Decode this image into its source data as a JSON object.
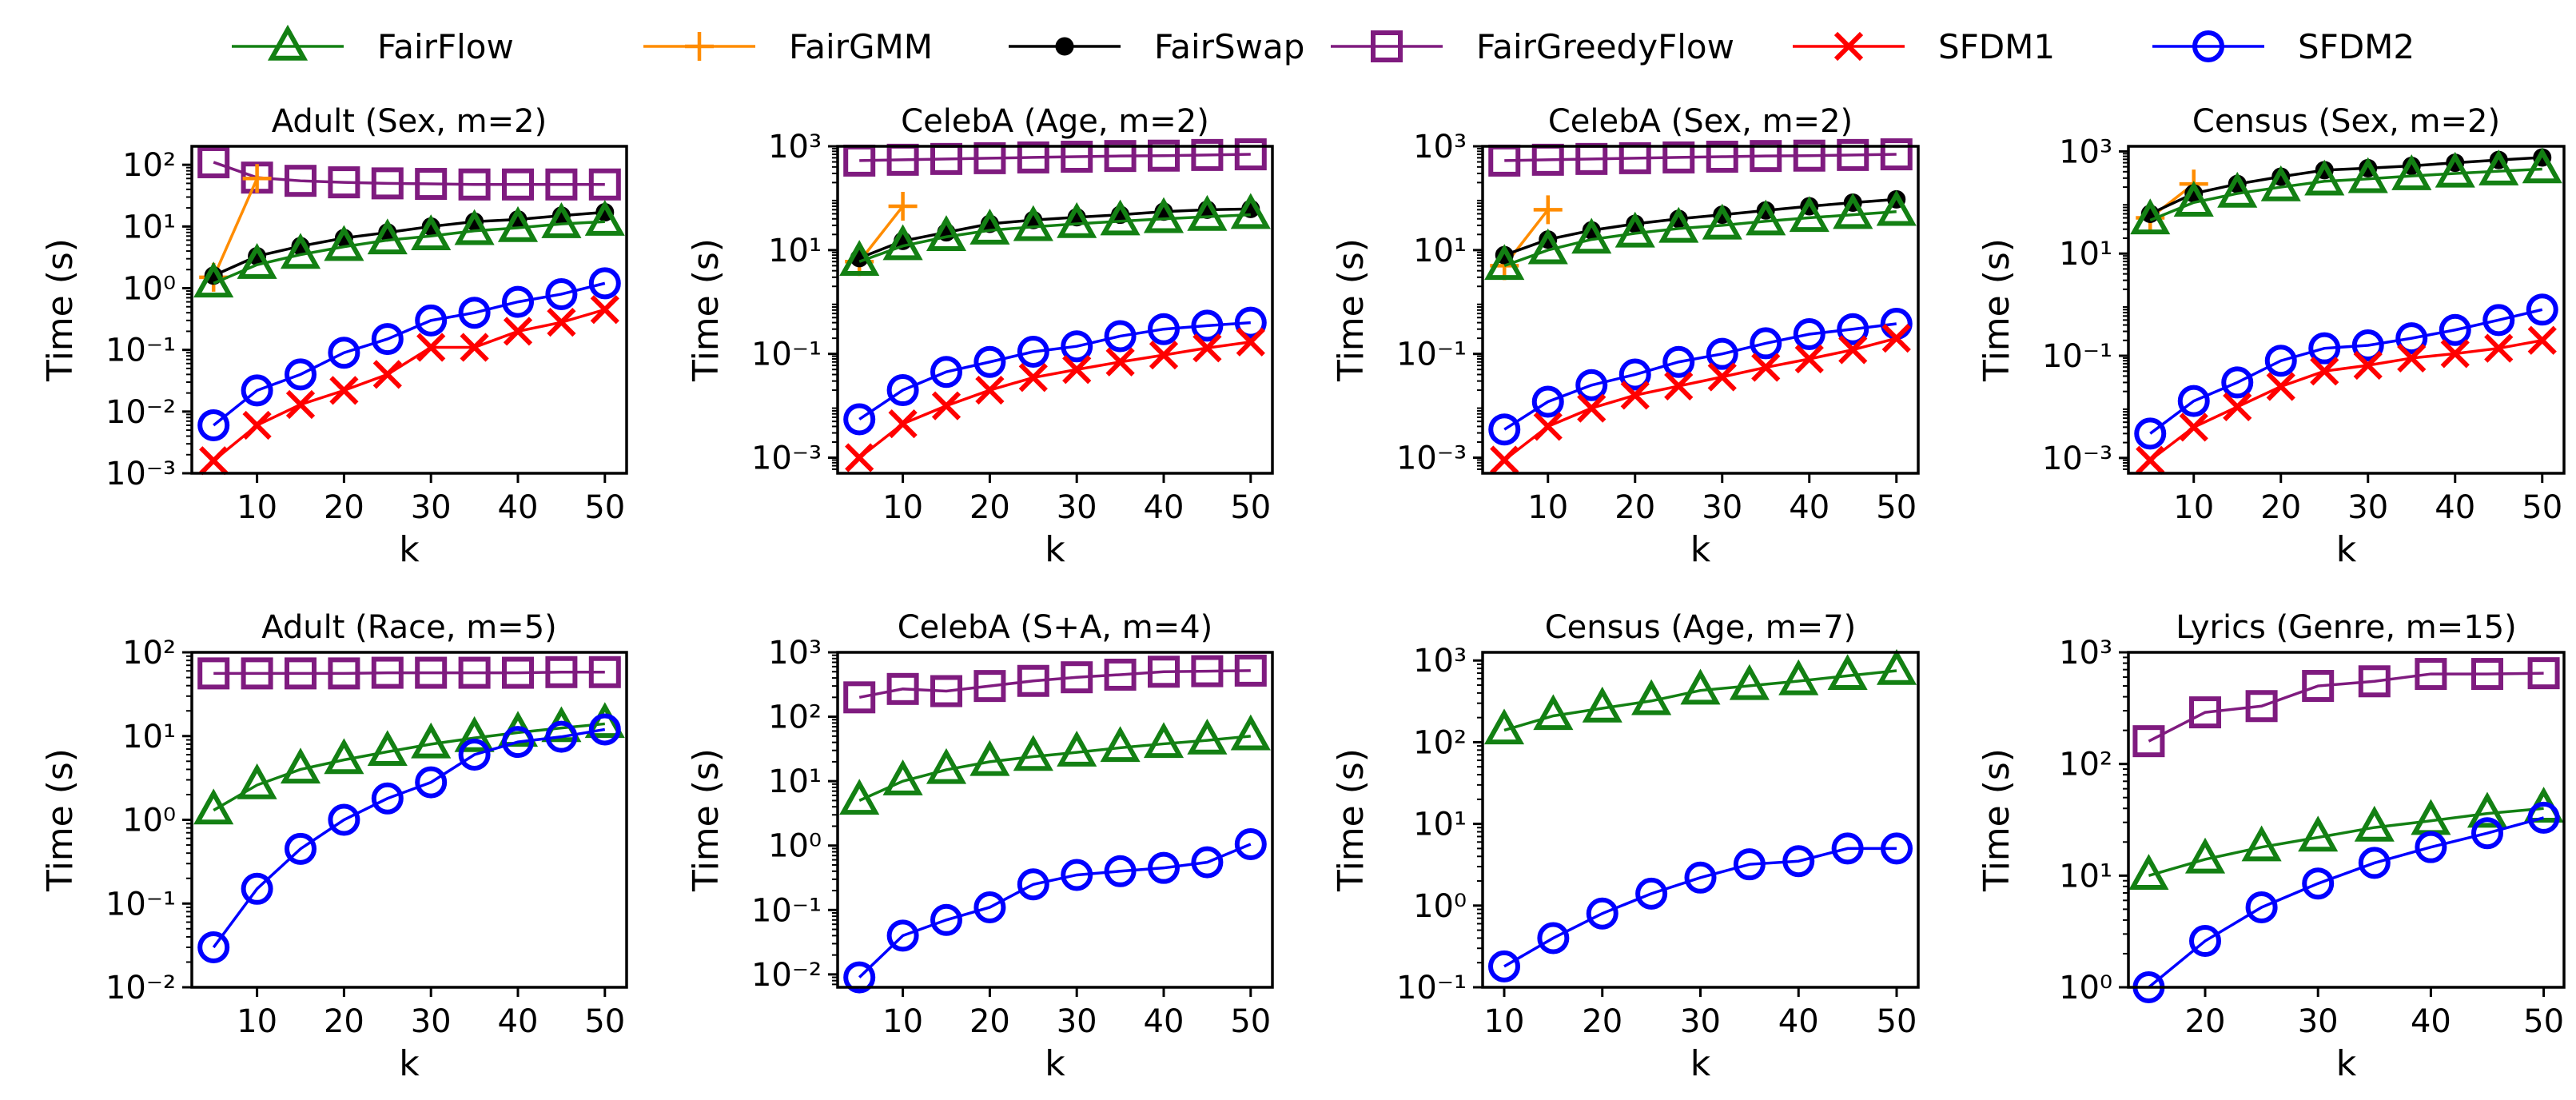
{
  "legend": [
    {
      "name": "FairFlow",
      "color": "#138013",
      "marker": "triangle"
    },
    {
      "name": "FairGMM",
      "color": "#ff8c00",
      "marker": "plus"
    },
    {
      "name": "FairSwap",
      "color": "#000000",
      "marker": "dot"
    },
    {
      "name": "FairGreedyFlow",
      "color": "#7f1b7f",
      "marker": "square"
    },
    {
      "name": "SFDM1",
      "color": "#ff0000",
      "marker": "x"
    },
    {
      "name": "SFDM2",
      "color": "#0000ff",
      "marker": "circle"
    }
  ],
  "chart_data": [
    {
      "type": "line",
      "title": "Adult (Sex, m=2)",
      "xlabel": "k",
      "ylabel": "Time (s)",
      "xlim": [
        2.5,
        52.5
      ],
      "xticks": [
        10,
        20,
        30,
        40,
        50
      ],
      "ylim_exp": [
        -3,
        2.3
      ],
      "yticks_exp": [
        -3,
        -2,
        -1,
        0,
        1,
        2
      ],
      "x": [
        5,
        10,
        15,
        20,
        25,
        30,
        35,
        40,
        45,
        50
      ],
      "series": [
        {
          "name": "FairGreedyFlow",
          "values": [
            110,
            62,
            55,
            52,
            50,
            49,
            48,
            48,
            48,
            48
          ]
        },
        {
          "name": "FairGMM",
          "values": [
            1.5,
            60,
            null,
            null,
            null,
            null,
            null,
            null,
            null,
            null
          ]
        },
        {
          "name": "FairSwap",
          "values": [
            1.6,
            3.3,
            4.8,
            6.5,
            8,
            10,
            12,
            13,
            15,
            17
          ]
        },
        {
          "name": "FairFlow",
          "values": [
            1.2,
            2.4,
            3.5,
            4.7,
            6,
            7,
            8.5,
            9.5,
            11,
            12
          ]
        },
        {
          "name": "SFDM2",
          "values": [
            0.006,
            0.022,
            0.04,
            0.09,
            0.15,
            0.3,
            0.4,
            0.6,
            0.8,
            1.2
          ]
        },
        {
          "name": "SFDM1",
          "values": [
            0.0016,
            0.006,
            0.013,
            0.022,
            0.04,
            0.11,
            0.11,
            0.2,
            0.28,
            0.45
          ]
        }
      ]
    },
    {
      "type": "line",
      "title": "CelebA (Age, m=2)",
      "xlabel": "k",
      "ylabel": "Time (s)",
      "xlim": [
        2.5,
        52.5
      ],
      "xticks": [
        10,
        20,
        30,
        40,
        50
      ],
      "ylim_exp": [
        -3.3,
        3
      ],
      "yticks_exp": [
        -3,
        -1,
        1,
        3
      ],
      "x": [
        5,
        10,
        15,
        20,
        25,
        30,
        35,
        40,
        45,
        50
      ],
      "series": [
        {
          "name": "FairGreedyFlow",
          "values": [
            530,
            550,
            570,
            590,
            610,
            630,
            650,
            660,
            680,
            700
          ]
        },
        {
          "name": "FairGMM",
          "values": [
            6,
            70,
            null,
            null,
            null,
            null,
            null,
            null,
            null,
            null
          ]
        },
        {
          "name": "FairSwap",
          "values": [
            7,
            15,
            22,
            32,
            38,
            43,
            48,
            55,
            60,
            62
          ]
        },
        {
          "name": "FairFlow",
          "values": [
            6,
            12,
            18,
            24,
            28,
            32,
            36,
            40,
            44,
            48
          ]
        },
        {
          "name": "SFDM2",
          "values": [
            0.0055,
            0.02,
            0.045,
            0.07,
            0.11,
            0.14,
            0.22,
            0.3,
            0.35,
            0.4
          ]
        },
        {
          "name": "SFDM1",
          "values": [
            0.001,
            0.0045,
            0.01,
            0.02,
            0.035,
            0.05,
            0.07,
            0.095,
            0.13,
            0.17
          ]
        }
      ]
    },
    {
      "type": "line",
      "title": "CelebA (Sex, m=2)",
      "xlabel": "k",
      "ylabel": "Time (s)",
      "xlim": [
        2.5,
        52.5
      ],
      "xticks": [
        10,
        20,
        30,
        40,
        50
      ],
      "ylim_exp": [
        -3.3,
        3
      ],
      "yticks_exp": [
        -3,
        -1,
        1,
        3
      ],
      "x": [
        5,
        10,
        15,
        20,
        25,
        30,
        35,
        40,
        45,
        50
      ],
      "series": [
        {
          "name": "FairGreedyFlow",
          "values": [
            530,
            550,
            570,
            590,
            610,
            630,
            650,
            660,
            680,
            700
          ]
        },
        {
          "name": "FairGMM",
          "values": [
            5,
            60,
            null,
            null,
            null,
            null,
            null,
            null,
            null,
            null
          ]
        },
        {
          "name": "FairSwap",
          "values": [
            8,
            16,
            24,
            32,
            40,
            48,
            58,
            70,
            82,
            95
          ]
        },
        {
          "name": "FairFlow",
          "values": [
            5,
            10,
            16,
            21,
            26,
            30,
            36,
            42,
            48,
            55
          ]
        },
        {
          "name": "SFDM2",
          "values": [
            0.0035,
            0.012,
            0.025,
            0.04,
            0.07,
            0.1,
            0.16,
            0.24,
            0.3,
            0.38
          ]
        },
        {
          "name": "SFDM1",
          "values": [
            0.0009,
            0.004,
            0.009,
            0.016,
            0.024,
            0.036,
            0.055,
            0.08,
            0.12,
            0.2
          ]
        }
      ]
    },
    {
      "type": "line",
      "title": "Census (Sex, m=2)",
      "xlabel": "k",
      "ylabel": "Time (s)",
      "xlim": [
        2.5,
        52.5
      ],
      "xticks": [
        10,
        20,
        30,
        40,
        50
      ],
      "ylim_exp": [
        -3.3,
        3.1
      ],
      "yticks_exp": [
        -3,
        -1,
        1,
        3
      ],
      "x": [
        5,
        10,
        15,
        20,
        25,
        30,
        35,
        40,
        45,
        50
      ],
      "series": [
        {
          "name": "FairGMM",
          "values": [
            50,
            230,
            null,
            null,
            null,
            null,
            null,
            null,
            null,
            null
          ]
        },
        {
          "name": "FairSwap",
          "values": [
            60,
            150,
            230,
            320,
            430,
            470,
            520,
            600,
            680,
            760
          ]
        },
        {
          "name": "FairFlow",
          "values": [
            45,
            100,
            150,
            200,
            260,
            290,
            330,
            370,
            410,
            450
          ]
        },
        {
          "name": "SFDM2",
          "values": [
            0.003,
            0.013,
            0.03,
            0.08,
            0.14,
            0.16,
            0.22,
            0.32,
            0.5,
            0.8
          ]
        },
        {
          "name": "SFDM1",
          "values": [
            0.0009,
            0.004,
            0.01,
            0.025,
            0.05,
            0.065,
            0.09,
            0.11,
            0.14,
            0.2
          ]
        }
      ]
    },
    {
      "type": "line",
      "title": "Adult (Race, m=5)",
      "xlabel": "k",
      "ylabel": "Time (s)",
      "xlim": [
        2.5,
        52.5
      ],
      "xticks": [
        10,
        20,
        30,
        40,
        50
      ],
      "ylim_exp": [
        -2,
        2
      ],
      "yticks_exp": [
        -2,
        -1,
        0,
        1,
        2
      ],
      "x": [
        5,
        10,
        15,
        20,
        25,
        30,
        35,
        40,
        45,
        50
      ],
      "series": [
        {
          "name": "FairGreedyFlow",
          "values": [
            56,
            56,
            56,
            56,
            57,
            57,
            57,
            57,
            58,
            58
          ]
        },
        {
          "name": "FairFlow",
          "values": [
            1.3,
            2.6,
            4,
            5.2,
            6.5,
            8,
            9.5,
            11,
            12.5,
            14
          ]
        },
        {
          "name": "SFDM2",
          "values": [
            0.03,
            0.15,
            0.45,
            1,
            1.8,
            2.8,
            6,
            8.5,
            9.8,
            12
          ]
        }
      ]
    },
    {
      "type": "line",
      "title": "CelebA (S+A, m=4)",
      "xlabel": "k",
      "ylabel": "Time (s)",
      "xlim": [
        2.5,
        52.5
      ],
      "xticks": [
        10,
        20,
        30,
        40,
        50
      ],
      "ylim_exp": [
        -2.2,
        3
      ],
      "yticks_exp": [
        -2,
        -1,
        0,
        1,
        2,
        3
      ],
      "x": [
        5,
        10,
        15,
        20,
        25,
        30,
        35,
        40,
        45,
        50
      ],
      "series": [
        {
          "name": "FairGreedyFlow",
          "values": [
            200,
            270,
            250,
            300,
            360,
            410,
            450,
            500,
            510,
            520
          ]
        },
        {
          "name": "FairFlow",
          "values": [
            5,
            10,
            15,
            20,
            24,
            28,
            33,
            38,
            43,
            50
          ]
        },
        {
          "name": "SFDM2",
          "values": [
            0.009,
            0.04,
            0.07,
            0.11,
            0.25,
            0.35,
            0.4,
            0.45,
            0.55,
            1.05
          ]
        }
      ]
    },
    {
      "type": "line",
      "title": "Census (Age, m=7)",
      "xlabel": "k",
      "ylabel": "Time (s)",
      "xlim": [
        7.8,
        52.2
      ],
      "xticks": [
        10,
        20,
        30,
        40,
        50
      ],
      "ylim_exp": [
        -1,
        3.1
      ],
      "yticks_exp": [
        -1,
        0,
        1,
        2,
        3
      ],
      "x": [
        10,
        15,
        20,
        25,
        30,
        35,
        40,
        45,
        50
      ],
      "series": [
        {
          "name": "FairFlow",
          "values": [
            140,
            210,
            260,
            320,
            430,
            490,
            560,
            650,
            750
          ]
        },
        {
          "name": "SFDM2",
          "values": [
            0.18,
            0.4,
            0.8,
            1.4,
            2.2,
            3.2,
            3.5,
            5,
            5
          ]
        }
      ]
    },
    {
      "type": "line",
      "title": "Lyrics (Genre, m=15)",
      "xlabel": "k",
      "ylabel": "Time (s)",
      "xlim": [
        13.2,
        51.8
      ],
      "xticks": [
        20,
        30,
        40,
        50
      ],
      "ylim_exp": [
        0,
        3
      ],
      "yticks_exp": [
        0,
        1,
        2,
        3
      ],
      "x": [
        15,
        20,
        25,
        30,
        35,
        40,
        45,
        50
      ],
      "series": [
        {
          "name": "FairGreedyFlow",
          "values": [
            160,
            290,
            330,
            500,
            550,
            640,
            640,
            650
          ]
        },
        {
          "name": "FairFlow",
          "values": [
            10,
            14,
            18,
            22,
            27,
            31,
            36,
            40
          ]
        },
        {
          "name": "SFDM2",
          "values": [
            1,
            2.6,
            5.2,
            8.5,
            13,
            18,
            24,
            33
          ]
        }
      ]
    }
  ]
}
